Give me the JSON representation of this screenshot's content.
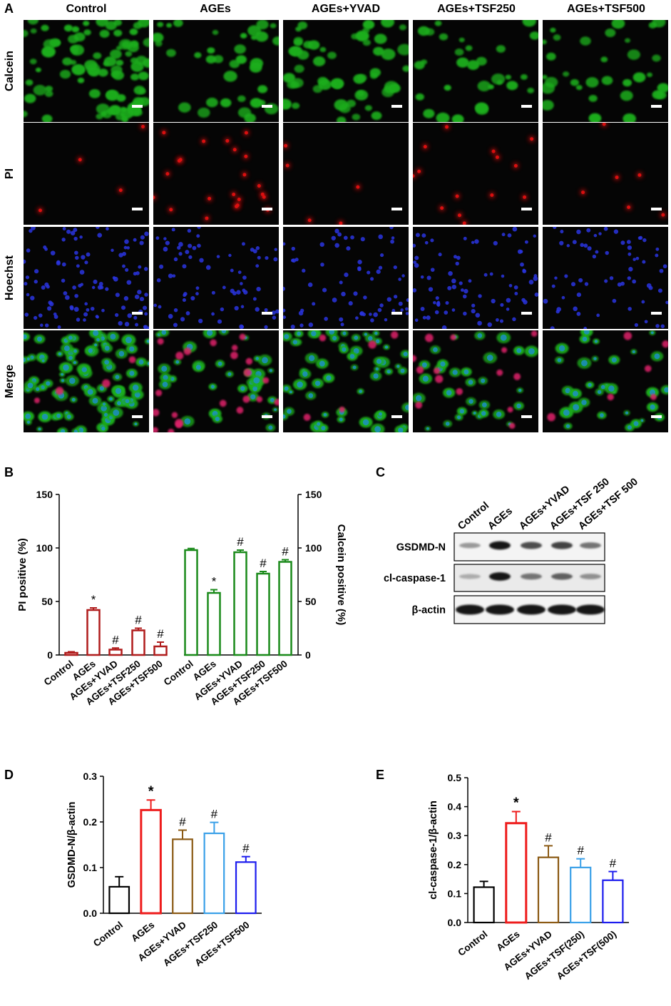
{
  "panels": {
    "a_letter": "A",
    "b_letter": "B",
    "c_letter": "C",
    "d_letter": "D",
    "e_letter": "E"
  },
  "micrographs": {
    "columns": [
      "Control",
      "AGEs",
      "AGEs+YVAD",
      "AGEs+TSF250",
      "AGEs+TSF500"
    ],
    "rows": [
      "Calcein",
      "PI",
      "Hoechst",
      "Merge"
    ],
    "colors": {
      "Calcein": "#1fae1f",
      "PI": "#e01010",
      "Hoechst": "#2a35e0",
      "MergeNuc": "#1d8fd0"
    }
  },
  "western_blot": {
    "lanes": [
      "Control",
      "AGEs",
      "AGEs+YVAD",
      "AGEs+TSF  250",
      "AGEs+TSF  500"
    ],
    "bands": [
      {
        "label": "GSDMD-N",
        "intensity": [
          0.25,
          0.95,
          0.65,
          0.7,
          0.45
        ]
      },
      {
        "label": "cl-caspase-1",
        "intensity": [
          0.15,
          0.95,
          0.45,
          0.55,
          0.3
        ]
      },
      {
        "label": "β-actin",
        "intensity": [
          0.95,
          0.95,
          0.95,
          0.95,
          0.95
        ]
      }
    ]
  },
  "chart_data": [
    {
      "type": "bar",
      "panel": "B",
      "categories": [
        "Control",
        "AGEs",
        "AGEs+YVAD",
        "AGEs+TSF250",
        "AGEs+TSF500"
      ],
      "left_ylabel": "PI positive  (%)",
      "right_ylabel": "Calcein positive  (%)",
      "ylim": [
        0,
        150
      ],
      "yticks": [
        0,
        50,
        100,
        150
      ],
      "series": [
        {
          "axis": "left",
          "color": "#b01c1c",
          "values": [
            2,
            42,
            5,
            23,
            8
          ],
          "errors": [
            1,
            2,
            1.5,
            2,
            4
          ],
          "marks": [
            "",
            "*",
            "#",
            "#",
            "#"
          ]
        },
        {
          "axis": "right",
          "color": "#1a8a1a",
          "values": [
            98,
            58,
            96,
            76,
            87
          ],
          "errors": [
            1.5,
            3,
            2,
            2,
            2
          ],
          "marks": [
            "",
            "*",
            "#",
            "#",
            "#"
          ]
        }
      ]
    },
    {
      "type": "bar",
      "panel": "D",
      "categories": [
        "Control",
        "AGEs",
        "AGEs+YVAD",
        "AGEs+TSF250",
        "AGEs+TSF500"
      ],
      "ylabel": "GSDMD-N/β-actin",
      "ylim": [
        0,
        0.3
      ],
      "yticks": [
        "0.0",
        "0.1",
        "0.2",
        "0.3"
      ],
      "values": [
        0.058,
        0.226,
        0.162,
        0.175,
        0.112
      ],
      "errors": [
        0.022,
        0.022,
        0.02,
        0.024,
        0.012
      ],
      "marks": [
        "",
        "*",
        "#",
        "#",
        "#"
      ],
      "colors": [
        "#000000",
        "#ee1c1c",
        "#8b5a14",
        "#3aa0e8",
        "#1c1cee"
      ]
    },
    {
      "type": "bar",
      "panel": "E",
      "categories": [
        "Control",
        "AGEs",
        "AGEs+YVAD",
        "AGEs+TSF(250)",
        "AGEs+TSF(500)"
      ],
      "ylabel": "cl-caspase-1/β-actin",
      "ylim": [
        0,
        0.5
      ],
      "yticks": [
        "0.0",
        "0.1",
        "0.2",
        "0.3",
        "0.4",
        "0.5"
      ],
      "values": [
        0.122,
        0.343,
        0.225,
        0.19,
        0.146
      ],
      "errors": [
        0.02,
        0.04,
        0.04,
        0.03,
        0.03
      ],
      "marks": [
        "",
        "*",
        "#",
        "#",
        "#"
      ],
      "colors": [
        "#000000",
        "#ee1c1c",
        "#8b5a14",
        "#3aa0e8",
        "#1c1cee"
      ]
    }
  ]
}
